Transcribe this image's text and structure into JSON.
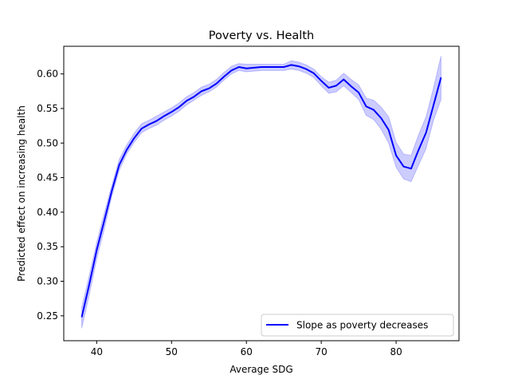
{
  "chart_data": {
    "type": "line",
    "title": "Poverty vs. Health",
    "xlabel": "Average SDG",
    "ylabel": "Predicted effect on increasing health",
    "xlim": [
      35.6,
      88.4
    ],
    "ylim": [
      0.214,
      0.64
    ],
    "xticks": [
      40,
      50,
      60,
      70,
      80
    ],
    "yticks": [
      0.25,
      0.3,
      0.35,
      0.4,
      0.45,
      0.5,
      0.55,
      0.6
    ],
    "grid": false,
    "legend_position": "lower right",
    "series": [
      {
        "name": "Slope as poverty decreases",
        "color": "#0000ff",
        "band_color": "#0000ff",
        "x": [
          38,
          39,
          40,
          41,
          42,
          43,
          44,
          45,
          46,
          47,
          48,
          49,
          50,
          51,
          52,
          53,
          54,
          55,
          56,
          57,
          58,
          59,
          60,
          61,
          62,
          63,
          64,
          65,
          66,
          67,
          68,
          69,
          70,
          71,
          72,
          73,
          74,
          75,
          76,
          77,
          78,
          79,
          80,
          81,
          82,
          83,
          84,
          85,
          86
        ],
        "y": [
          0.248,
          0.295,
          0.345,
          0.387,
          0.43,
          0.468,
          0.49,
          0.507,
          0.521,
          0.527,
          0.532,
          0.539,
          0.545,
          0.552,
          0.561,
          0.567,
          0.575,
          0.579,
          0.586,
          0.596,
          0.605,
          0.61,
          0.608,
          0.609,
          0.61,
          0.61,
          0.61,
          0.61,
          0.613,
          0.611,
          0.607,
          0.601,
          0.59,
          0.58,
          0.583,
          0.592,
          0.582,
          0.573,
          0.553,
          0.548,
          0.536,
          0.519,
          0.482,
          0.466,
          0.463,
          0.49,
          0.515,
          0.555,
          0.595
        ],
        "lower": [
          0.232,
          0.28,
          0.332,
          0.375,
          0.422,
          0.46,
          0.484,
          0.501,
          0.515,
          0.521,
          0.526,
          0.533,
          0.539,
          0.546,
          0.555,
          0.562,
          0.569,
          0.574,
          0.581,
          0.591,
          0.6,
          0.605,
          0.603,
          0.604,
          0.605,
          0.605,
          0.605,
          0.605,
          0.607,
          0.605,
          0.601,
          0.595,
          0.583,
          0.572,
          0.574,
          0.583,
          0.573,
          0.563,
          0.54,
          0.534,
          0.52,
          0.5,
          0.465,
          0.448,
          0.444,
          0.468,
          0.492,
          0.533,
          0.563
        ],
        "upper": [
          0.262,
          0.308,
          0.356,
          0.398,
          0.438,
          0.476,
          0.497,
          0.514,
          0.528,
          0.533,
          0.539,
          0.545,
          0.551,
          0.558,
          0.567,
          0.573,
          0.581,
          0.585,
          0.592,
          0.602,
          0.611,
          0.615,
          0.614,
          0.614,
          0.614,
          0.614,
          0.614,
          0.614,
          0.619,
          0.617,
          0.613,
          0.607,
          0.596,
          0.588,
          0.591,
          0.601,
          0.592,
          0.584,
          0.565,
          0.562,
          0.552,
          0.538,
          0.501,
          0.484,
          0.482,
          0.512,
          0.538,
          0.58,
          0.626
        ]
      }
    ]
  }
}
